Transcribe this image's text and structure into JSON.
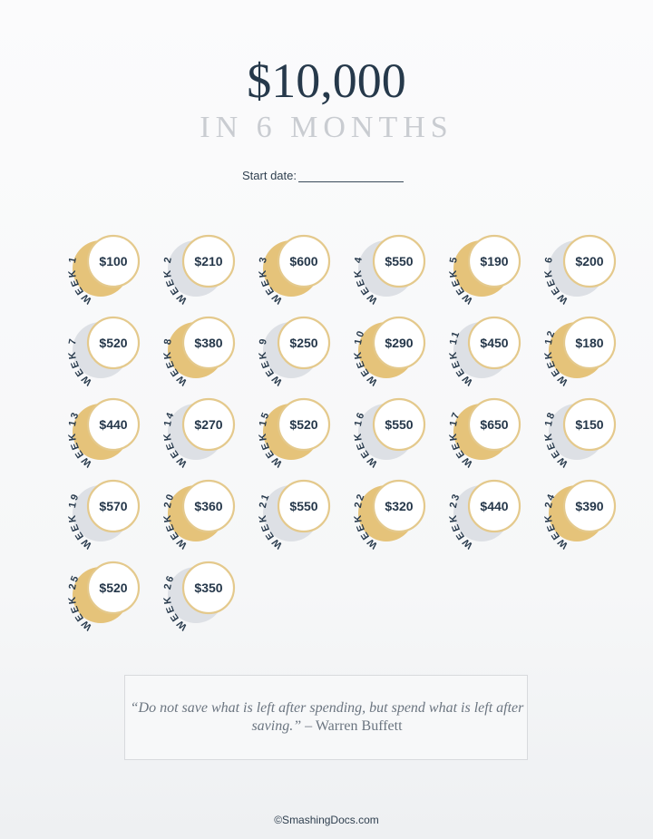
{
  "header": {
    "title": "$10,000",
    "subtitle": "IN 6 MONTHS",
    "start_label": "Start date:"
  },
  "colors": {
    "gold": "#e5c37a",
    "gray": "#dde0e5",
    "ring": "#e4c98c",
    "text": "#26394b"
  },
  "weeks": [
    {
      "label": "WEEK 1",
      "amount": "$100",
      "crescent": "gold"
    },
    {
      "label": "WEEK 2",
      "amount": "$210",
      "crescent": "gray"
    },
    {
      "label": "WEEK 3",
      "amount": "$600",
      "crescent": "gold"
    },
    {
      "label": "WEEK 4",
      "amount": "$550",
      "crescent": "gray"
    },
    {
      "label": "WEEK 5",
      "amount": "$190",
      "crescent": "gold"
    },
    {
      "label": "WEEK 6",
      "amount": "$200",
      "crescent": "gray"
    },
    {
      "label": "WEEK 7",
      "amount": "$520",
      "crescent": "gray"
    },
    {
      "label": "WEEK 8",
      "amount": "$380",
      "crescent": "gold"
    },
    {
      "label": "WEEK 9",
      "amount": "$250",
      "crescent": "gray"
    },
    {
      "label": "WEEK 10",
      "amount": "$290",
      "crescent": "gold"
    },
    {
      "label": "WEEK 11",
      "amount": "$450",
      "crescent": "gray"
    },
    {
      "label": "WEEK 12",
      "amount": "$180",
      "crescent": "gold"
    },
    {
      "label": "WEEK 13",
      "amount": "$440",
      "crescent": "gold"
    },
    {
      "label": "WEEK 14",
      "amount": "$270",
      "crescent": "gray"
    },
    {
      "label": "WEEK 15",
      "amount": "$520",
      "crescent": "gold"
    },
    {
      "label": "WEEK 16",
      "amount": "$550",
      "crescent": "gray"
    },
    {
      "label": "WEEK 17",
      "amount": "$650",
      "crescent": "gold"
    },
    {
      "label": "WEEK 18",
      "amount": "$150",
      "crescent": "gray"
    },
    {
      "label": "WEEK 19",
      "amount": "$570",
      "crescent": "gray"
    },
    {
      "label": "WEEK 20",
      "amount": "$360",
      "crescent": "gold"
    },
    {
      "label": "WEEK 21",
      "amount": "$550",
      "crescent": "gray"
    },
    {
      "label": "WEEK 22",
      "amount": "$320",
      "crescent": "gold"
    },
    {
      "label": "WEEK 23",
      "amount": "$440",
      "crescent": "gray"
    },
    {
      "label": "WEEK 24",
      "amount": "$390",
      "crescent": "gold"
    },
    {
      "label": "WEEK 25",
      "amount": "$520",
      "crescent": "gold"
    },
    {
      "label": "WEEK 26",
      "amount": "$350",
      "crescent": "gray"
    }
  ],
  "quote": {
    "text": "“Do not save what is left after spending, but spend what is left after saving.”",
    "author": " – Warren Buffett"
  },
  "footer": {
    "credit": "©SmashingDocs.com"
  }
}
